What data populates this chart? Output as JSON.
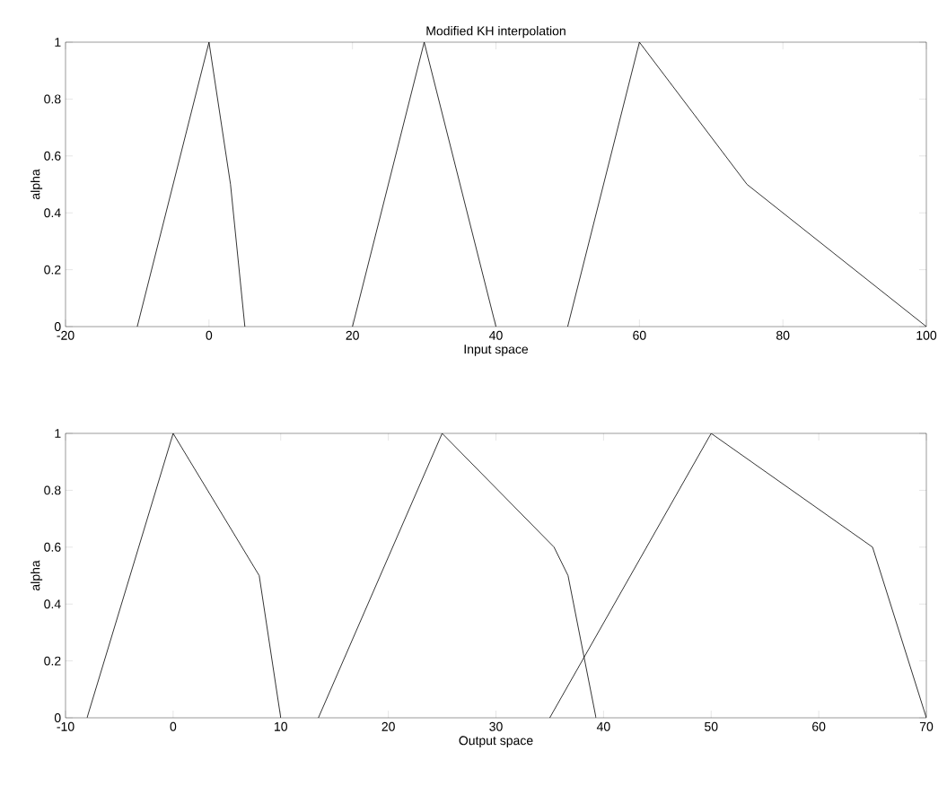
{
  "chart_data": [
    {
      "type": "line",
      "title": "Modified KH interpolation",
      "xlabel": "Input space",
      "ylabel": "alpha",
      "xlim": [
        -20,
        100
      ],
      "ylim": [
        0,
        1
      ],
      "xticks": [
        -20,
        0,
        20,
        40,
        60,
        80,
        100
      ],
      "yticks": [
        0,
        0.2,
        0.4,
        0.6,
        0.8,
        1
      ],
      "series": [
        {
          "color": "#000000",
          "x": [
            -10,
            0,
            3,
            5
          ],
          "values": [
            0,
            1,
            0.5,
            0
          ]
        },
        {
          "color": "#000000",
          "x": [
            20,
            30,
            40
          ],
          "values": [
            0,
            1,
            0
          ]
        },
        {
          "color": "#000000",
          "x": [
            50,
            60,
            75,
            100
          ],
          "values": [
            0,
            1,
            0.5,
            0
          ]
        }
      ]
    },
    {
      "type": "line",
      "xlabel": "Output space",
      "ylabel": "alpha",
      "xlim": [
        -10,
        70
      ],
      "ylim": [
        0,
        1
      ],
      "xticks": [
        -10,
        0,
        10,
        20,
        30,
        40,
        50,
        60,
        70
      ],
      "yticks": [
        0,
        0.2,
        0.4,
        0.6,
        0.8,
        1
      ],
      "series": [
        {
          "color": "#000000",
          "x": [
            -8,
            0,
            8,
            10
          ],
          "values": [
            0,
            1,
            0.5,
            0
          ]
        },
        {
          "color": "#000000",
          "x": [
            13.5,
            25,
            35.4,
            36.7,
            39.3
          ],
          "values": [
            0,
            1,
            0.6,
            0.5,
            0
          ]
        },
        {
          "color": "#000000",
          "x": [
            35,
            50,
            65,
            70
          ],
          "values": [
            0,
            1,
            0.6,
            0
          ]
        }
      ]
    }
  ]
}
